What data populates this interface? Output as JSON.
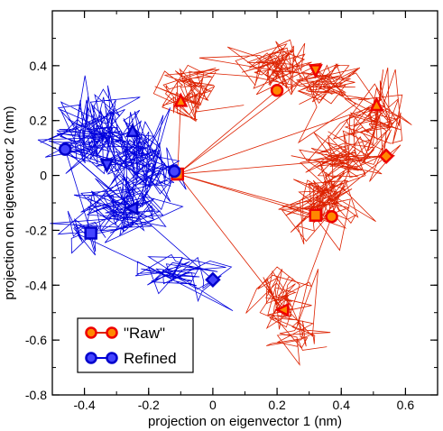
{
  "chart_data": {
    "type": "scatter",
    "xlabel": "projection on eigenvector 1 (nm)",
    "ylabel": "projection on eigenvector 2 (nm)",
    "xlim": [
      -0.5,
      0.7
    ],
    "ylim": [
      -0.8,
      0.6
    ],
    "xticks": [
      -0.4,
      -0.2,
      0,
      0.2,
      0.4,
      0.6
    ],
    "xtick_labels": [
      "-0.4",
      "-0.2",
      "0",
      "0.2",
      "0.4",
      "0.6"
    ],
    "yticks": [
      -0.8,
      -0.6,
      -0.4,
      -0.2,
      0,
      0.2,
      0.4
    ],
    "ytick_labels": [
      "-0.8",
      "-0.6",
      "-0.4",
      "-0.2",
      "0",
      "0.2",
      "0.4"
    ],
    "grid": false,
    "legend_position": "bottom-left",
    "series": [
      {
        "name": "\"Raw\"",
        "line_color": "#dd2200",
        "marker_fill": "#ff8800",
        "marker_edge": "#ee0000",
        "markers": [
          {
            "shape": "square",
            "x": -0.11,
            "y": 0.005
          },
          {
            "shape": "circle",
            "x": 0.2,
            "y": 0.31
          },
          {
            "shape": "triangle-up",
            "x": -0.1,
            "y": 0.27
          },
          {
            "shape": "triangle-down",
            "x": 0.32,
            "y": 0.385
          },
          {
            "shape": "diamond",
            "x": 0.54,
            "y": 0.07
          },
          {
            "shape": "square",
            "x": 0.32,
            "y": -0.145
          },
          {
            "shape": "triangle-left",
            "x": 0.22,
            "y": -0.49
          },
          {
            "shape": "triangle-up",
            "x": 0.51,
            "y": 0.255
          },
          {
            "shape": "circle",
            "x": 0.37,
            "y": -0.15
          }
        ],
        "clusters": [
          {
            "cx": -0.07,
            "cy": 0.3,
            "sx": 0.06,
            "sy": 0.06,
            "n": 70
          },
          {
            "cx": 0.2,
            "cy": 0.4,
            "sx": 0.06,
            "sy": 0.06,
            "n": 80
          },
          {
            "cx": 0.36,
            "cy": 0.33,
            "sx": 0.06,
            "sy": 0.05,
            "n": 60
          },
          {
            "cx": 0.5,
            "cy": 0.2,
            "sx": 0.05,
            "sy": 0.08,
            "n": 70
          },
          {
            "cx": 0.42,
            "cy": 0.07,
            "sx": 0.07,
            "sy": 0.05,
            "n": 70
          },
          {
            "cx": 0.34,
            "cy": -0.1,
            "sx": 0.06,
            "sy": 0.06,
            "n": 90
          },
          {
            "cx": 0.22,
            "cy": -0.46,
            "sx": 0.05,
            "sy": 0.06,
            "n": 60
          },
          {
            "cx": 0.27,
            "cy": -0.58,
            "sx": 0.05,
            "sy": 0.04,
            "n": 30
          }
        ]
      },
      {
        "name": "Refined",
        "line_color": "#0000dd",
        "marker_fill": "#4444ff",
        "marker_edge": "#0000cc",
        "markers": [
          {
            "shape": "circle",
            "x": -0.46,
            "y": 0.095
          },
          {
            "shape": "circle",
            "x": -0.12,
            "y": 0.015
          },
          {
            "shape": "triangle-down",
            "x": -0.33,
            "y": 0.04
          },
          {
            "shape": "triangle-up",
            "x": -0.25,
            "y": 0.16
          },
          {
            "shape": "square",
            "x": -0.38,
            "y": -0.21
          },
          {
            "shape": "triangle-left",
            "x": -0.25,
            "y": -0.12
          },
          {
            "shape": "diamond",
            "x": 0.0,
            "y": -0.38
          }
        ],
        "clusters": [
          {
            "cx": -0.38,
            "cy": 0.15,
            "sx": 0.07,
            "sy": 0.07,
            "n": 110
          },
          {
            "cx": -0.25,
            "cy": 0.08,
            "sx": 0.06,
            "sy": 0.08,
            "n": 90
          },
          {
            "cx": -0.16,
            "cy": 0.0,
            "sx": 0.05,
            "sy": 0.05,
            "n": 40
          },
          {
            "cx": -0.3,
            "cy": -0.12,
            "sx": 0.08,
            "sy": 0.06,
            "n": 90
          },
          {
            "cx": -0.4,
            "cy": -0.2,
            "sx": 0.04,
            "sy": 0.04,
            "n": 25
          },
          {
            "cx": -0.1,
            "cy": -0.36,
            "sx": 0.06,
            "sy": 0.04,
            "n": 60
          }
        ]
      }
    ]
  }
}
